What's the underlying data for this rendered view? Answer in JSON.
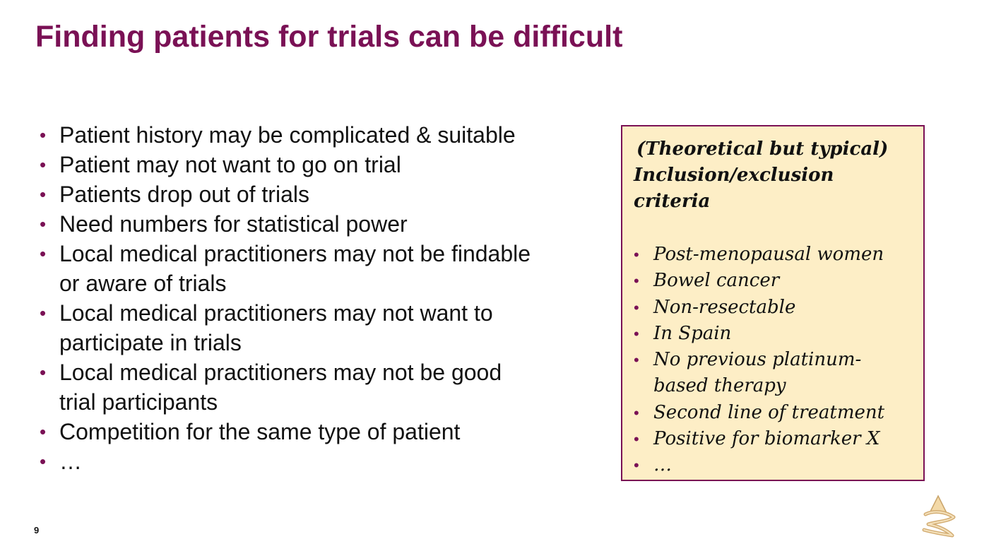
{
  "slide": {
    "title": "Finding patients for trials can be difficult",
    "page_number": "9"
  },
  "main_points": [
    {
      "line1": "Patient history may be complicated & suitable",
      "line2": ""
    },
    {
      "line1": "Patient may not want to go on trial",
      "line2": ""
    },
    {
      "line1": "Patients drop out of trials",
      "line2": ""
    },
    {
      "line1": "Need numbers for statistical power",
      "line2": ""
    },
    {
      "line1": "Local medical practitioners may not be findable",
      "line2": "or aware of trials"
    },
    {
      "line1": "Local medical practitioners may not want to",
      "line2": "participate in trials"
    },
    {
      "line1": "Local medical practitioners may not be good",
      "line2": "trial participants"
    },
    {
      "line1": "Competition for the same type of patient",
      "line2": ""
    },
    {
      "line1": "…",
      "line2": ""
    }
  ],
  "criteria_box": {
    "title_line1": "(Theoretical but typical)",
    "title_line2": "Inclusion/exclusion",
    "title_line3": "criteria",
    "items": [
      {
        "line1": "Post-menopausal women",
        "line2": ""
      },
      {
        "line1": "Bowel cancer",
        "line2": ""
      },
      {
        "line1": "Non-resectable",
        "line2": ""
      },
      {
        "line1": "In Spain",
        "line2": ""
      },
      {
        "line1": "No previous platinum-",
        "line2": "based therapy"
      },
      {
        "line1": "Second line of treatment",
        "line2": ""
      },
      {
        "line1": "Positive for biomarker X",
        "line2": ""
      },
      {
        "line1": "…",
        "line2": ""
      }
    ]
  },
  "colors": {
    "title": "#7a1155",
    "bullet": "#7a1155",
    "box_background": "#fdeec6",
    "box_border": "#7a1155"
  },
  "logo": {
    "icon": "company-logo-icon"
  }
}
